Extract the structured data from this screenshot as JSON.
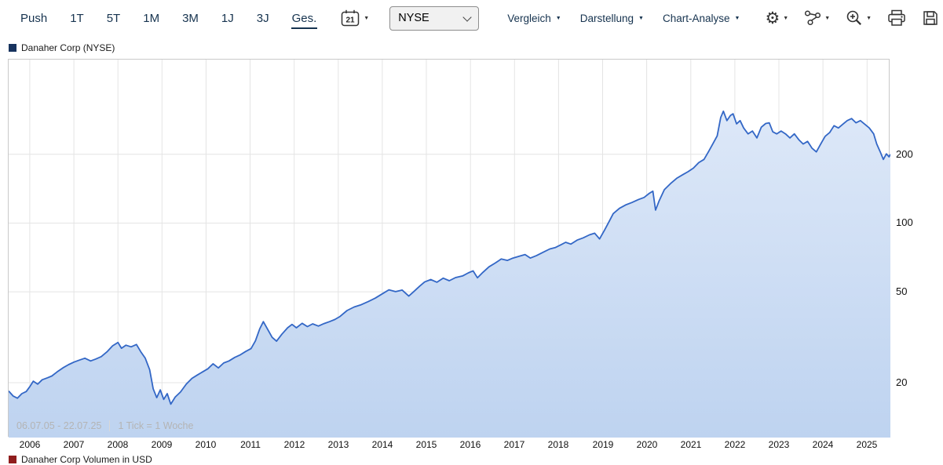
{
  "toolbar": {
    "range_buttons": [
      {
        "label": "Push",
        "active": false
      },
      {
        "label": "1T",
        "active": false
      },
      {
        "label": "5T",
        "active": false
      },
      {
        "label": "1M",
        "active": false
      },
      {
        "label": "3M",
        "active": false
      },
      {
        "label": "1J",
        "active": false
      },
      {
        "label": "3J",
        "active": false
      },
      {
        "label": "Ges.",
        "active": true
      }
    ],
    "calendar_day": "21",
    "exchange": {
      "value": "NYSE",
      "options": [
        "NYSE"
      ]
    },
    "menus": [
      {
        "label": "Vergleich"
      },
      {
        "label": "Darstellung"
      },
      {
        "label": "Chart-Analyse"
      }
    ],
    "icon_buttons": [
      "settings-icon",
      "indicators-icon",
      "zoom-in-icon",
      "print-icon",
      "save-icon"
    ]
  },
  "legend": {
    "price_series": "Danaher Corp (NYSE)",
    "volume_series": "Danaher Corp Volumen in USD"
  },
  "colors": {
    "price_line": "#3367c6",
    "area_top": "#dde8f8",
    "area_bottom": "#bed3f0",
    "price_swatch": "#17335e",
    "volume_swatch": "#8f1d1d",
    "grid": "#e4e4e4",
    "plot_border": "#c9c9c9",
    "toolbar_text": "#16334f",
    "footnote_text": "#b4b4b4"
  },
  "chart_data": {
    "type": "line",
    "title": "Danaher Corp (NYSE)",
    "y_scale": "log",
    "grid": true,
    "legend_position": "top-left",
    "footnote_range": "06.07.05 - 22.07.25",
    "footnote_tick": "1 Tick = 1 Woche",
    "x_range": [
      2005.52,
      2025.53
    ],
    "y_range": [
      11.5,
      520
    ],
    "y_ticks": [
      20,
      50,
      100,
      200
    ],
    "x_ticks": [
      2006,
      2007,
      2008,
      2009,
      2010,
      2011,
      2012,
      2013,
      2014,
      2015,
      2016,
      2017,
      2018,
      2019,
      2020,
      2021,
      2022,
      2023,
      2024,
      2025
    ],
    "series": [
      {
        "name": "Danaher Corp (NYSE)",
        "points": [
          [
            2005.52,
            18.4
          ],
          [
            2005.62,
            17.5
          ],
          [
            2005.72,
            17.1
          ],
          [
            2005.82,
            17.9
          ],
          [
            2005.92,
            18.3
          ],
          [
            2006.0,
            19.2
          ],
          [
            2006.08,
            20.3
          ],
          [
            2006.18,
            19.7
          ],
          [
            2006.28,
            20.6
          ],
          [
            2006.4,
            21.0
          ],
          [
            2006.5,
            21.4
          ],
          [
            2006.62,
            22.3
          ],
          [
            2006.75,
            23.2
          ],
          [
            2006.88,
            24.0
          ],
          [
            2007.0,
            24.6
          ],
          [
            2007.12,
            25.1
          ],
          [
            2007.25,
            25.6
          ],
          [
            2007.38,
            24.9
          ],
          [
            2007.5,
            25.4
          ],
          [
            2007.62,
            26.0
          ],
          [
            2007.75,
            27.3
          ],
          [
            2007.88,
            29.0
          ],
          [
            2008.0,
            30.0
          ],
          [
            2008.08,
            28.3
          ],
          [
            2008.18,
            29.2
          ],
          [
            2008.3,
            28.7
          ],
          [
            2008.42,
            29.4
          ],
          [
            2008.52,
            27.3
          ],
          [
            2008.62,
            25.6
          ],
          [
            2008.72,
            22.8
          ],
          [
            2008.8,
            18.8
          ],
          [
            2008.88,
            17.2
          ],
          [
            2008.96,
            18.6
          ],
          [
            2009.04,
            16.9
          ],
          [
            2009.12,
            17.9
          ],
          [
            2009.2,
            16.1
          ],
          [
            2009.3,
            17.3
          ],
          [
            2009.42,
            18.2
          ],
          [
            2009.55,
            19.7
          ],
          [
            2009.68,
            20.9
          ],
          [
            2009.8,
            21.6
          ],
          [
            2009.92,
            22.3
          ],
          [
            2010.04,
            23.0
          ],
          [
            2010.16,
            24.2
          ],
          [
            2010.28,
            23.2
          ],
          [
            2010.4,
            24.4
          ],
          [
            2010.52,
            24.9
          ],
          [
            2010.65,
            25.8
          ],
          [
            2010.78,
            26.5
          ],
          [
            2010.9,
            27.4
          ],
          [
            2011.02,
            28.2
          ],
          [
            2011.12,
            30.5
          ],
          [
            2011.22,
            34.5
          ],
          [
            2011.3,
            37.0
          ],
          [
            2011.4,
            34.2
          ],
          [
            2011.5,
            31.6
          ],
          [
            2011.6,
            30.4
          ],
          [
            2011.72,
            32.6
          ],
          [
            2011.85,
            34.8
          ],
          [
            2011.95,
            36.0
          ],
          [
            2012.05,
            34.8
          ],
          [
            2012.18,
            36.4
          ],
          [
            2012.3,
            35.2
          ],
          [
            2012.42,
            36.2
          ],
          [
            2012.55,
            35.4
          ],
          [
            2012.68,
            36.3
          ],
          [
            2012.8,
            37.0
          ],
          [
            2012.92,
            37.8
          ],
          [
            2013.04,
            39.0
          ],
          [
            2013.2,
            41.4
          ],
          [
            2013.36,
            42.9
          ],
          [
            2013.52,
            43.9
          ],
          [
            2013.68,
            45.3
          ],
          [
            2013.84,
            46.9
          ],
          [
            2014.0,
            49.0
          ],
          [
            2014.15,
            51.0
          ],
          [
            2014.3,
            50.1
          ],
          [
            2014.45,
            50.9
          ],
          [
            2014.6,
            47.9
          ],
          [
            2014.72,
            50.2
          ],
          [
            2014.85,
            53.0
          ],
          [
            2014.96,
            55.2
          ],
          [
            2015.1,
            56.6
          ],
          [
            2015.24,
            55.1
          ],
          [
            2015.38,
            57.4
          ],
          [
            2015.52,
            55.9
          ],
          [
            2015.66,
            57.7
          ],
          [
            2015.82,
            58.7
          ],
          [
            2015.95,
            60.5
          ],
          [
            2016.06,
            61.8
          ],
          [
            2016.16,
            57.6
          ],
          [
            2016.28,
            60.8
          ],
          [
            2016.42,
            64.3
          ],
          [
            2016.56,
            66.8
          ],
          [
            2016.7,
            69.6
          ],
          [
            2016.84,
            68.6
          ],
          [
            2016.96,
            70.2
          ],
          [
            2017.1,
            71.5
          ],
          [
            2017.24,
            72.8
          ],
          [
            2017.36,
            70.3
          ],
          [
            2017.5,
            72.1
          ],
          [
            2017.64,
            74.4
          ],
          [
            2017.8,
            77.0
          ],
          [
            2017.93,
            78.2
          ],
          [
            2018.06,
            80.5
          ],
          [
            2018.16,
            82.4
          ],
          [
            2018.28,
            80.9
          ],
          [
            2018.42,
            84.2
          ],
          [
            2018.56,
            86.2
          ],
          [
            2018.7,
            88.8
          ],
          [
            2018.82,
            90.3
          ],
          [
            2018.93,
            85.2
          ],
          [
            2019.04,
            93.0
          ],
          [
            2019.14,
            101.0
          ],
          [
            2019.24,
            110.0
          ],
          [
            2019.38,
            116.0
          ],
          [
            2019.52,
            120.0
          ],
          [
            2019.66,
            123.0
          ],
          [
            2019.82,
            127.0
          ],
          [
            2019.94,
            129.5
          ],
          [
            2020.06,
            135.0
          ],
          [
            2020.14,
            138.0
          ],
          [
            2020.2,
            114.0
          ],
          [
            2020.28,
            125.0
          ],
          [
            2020.4,
            140.0
          ],
          [
            2020.54,
            149.0
          ],
          [
            2020.68,
            157.0
          ],
          [
            2020.82,
            163.0
          ],
          [
            2020.94,
            168.0
          ],
          [
            2021.06,
            174.0
          ],
          [
            2021.18,
            184.0
          ],
          [
            2021.3,
            190.0
          ],
          [
            2021.4,
            205.0
          ],
          [
            2021.5,
            222.0
          ],
          [
            2021.6,
            241.0
          ],
          [
            2021.68,
            290.0
          ],
          [
            2021.74,
            309.0
          ],
          [
            2021.82,
            281.0
          ],
          [
            2021.9,
            296.0
          ],
          [
            2021.96,
            301.0
          ],
          [
            2022.04,
            272.0
          ],
          [
            2022.12,
            281.0
          ],
          [
            2022.2,
            261.0
          ],
          [
            2022.3,
            246.0
          ],
          [
            2022.4,
            253.0
          ],
          [
            2022.5,
            236.0
          ],
          [
            2022.6,
            263.0
          ],
          [
            2022.7,
            273.0
          ],
          [
            2022.78,
            275.0
          ],
          [
            2022.86,
            251.0
          ],
          [
            2022.95,
            246.0
          ],
          [
            2023.05,
            253.0
          ],
          [
            2023.15,
            246.0
          ],
          [
            2023.25,
            236.0
          ],
          [
            2023.35,
            246.0
          ],
          [
            2023.45,
            232.0
          ],
          [
            2023.55,
            222.0
          ],
          [
            2023.65,
            228.0
          ],
          [
            2023.75,
            213.0
          ],
          [
            2023.85,
            205.0
          ],
          [
            2023.95,
            222.0
          ],
          [
            2024.05,
            240.0
          ],
          [
            2024.15,
            249.0
          ],
          [
            2024.25,
            267.0
          ],
          [
            2024.35,
            261.0
          ],
          [
            2024.45,
            271.0
          ],
          [
            2024.55,
            281.0
          ],
          [
            2024.65,
            287.0
          ],
          [
            2024.75,
            275.0
          ],
          [
            2024.85,
            281.0
          ],
          [
            2024.95,
            271.0
          ],
          [
            2025.05,
            261.0
          ],
          [
            2025.15,
            246.0
          ],
          [
            2025.22,
            222.0
          ],
          [
            2025.3,
            205.0
          ],
          [
            2025.37,
            190.0
          ],
          [
            2025.44,
            201.0
          ],
          [
            2025.5,
            195.0
          ],
          [
            2025.53,
            200.0
          ]
        ]
      }
    ]
  }
}
